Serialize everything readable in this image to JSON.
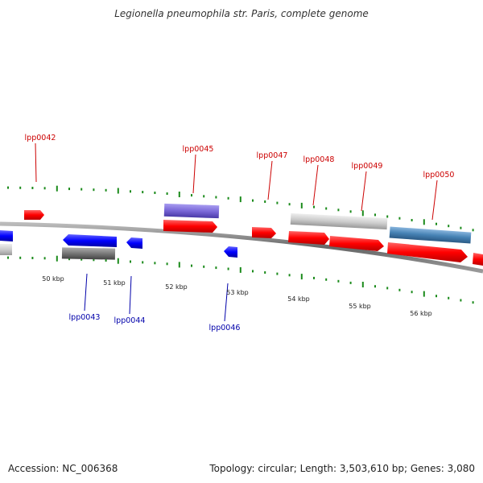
{
  "title": "Legionella pneumophila str. Paris, complete genome",
  "footer": {
    "accession": "Accession: NC_006368",
    "summary": "Topology: circular; Length: 3,503,610 bp; Genes: 3,080"
  },
  "colors": {
    "forward": "#ff0000",
    "reverse": "#0000ff",
    "backbone": "#777777",
    "tick": "#1a8a1a",
    "label_forward": "#cc0000",
    "label_reverse": "#0000aa"
  },
  "kbp_labels": [
    {
      "value": 50,
      "text": "50 kbp"
    },
    {
      "value": 51,
      "text": "51 kbp"
    },
    {
      "value": 52,
      "text": "52 kbp"
    },
    {
      "value": 53,
      "text": "53 kbp"
    },
    {
      "value": 54,
      "text": "54 kbp"
    },
    {
      "value": 55,
      "text": "55 kbp"
    },
    {
      "value": 56,
      "text": "56 kbp"
    }
  ],
  "gene_labels": [
    {
      "id": "lpp0042",
      "text": "lpp0042",
      "strand": "forward"
    },
    {
      "id": "lpp0043",
      "text": "lpp0043",
      "strand": "reverse"
    },
    {
      "id": "lpp0044",
      "text": "lpp0044",
      "strand": "reverse"
    },
    {
      "id": "lpp0045",
      "text": "lpp0045",
      "strand": "forward"
    },
    {
      "id": "lpp0046",
      "text": "lpp0046",
      "strand": "reverse"
    },
    {
      "id": "lpp0047",
      "text": "lpp0047",
      "strand": "forward"
    },
    {
      "id": "lpp0048",
      "text": "lpp0048",
      "strand": "forward"
    },
    {
      "id": "lpp0049",
      "text": "lpp0049",
      "strand": "forward"
    },
    {
      "id": "lpp0050",
      "text": "lpp0050",
      "strand": "forward"
    }
  ]
}
